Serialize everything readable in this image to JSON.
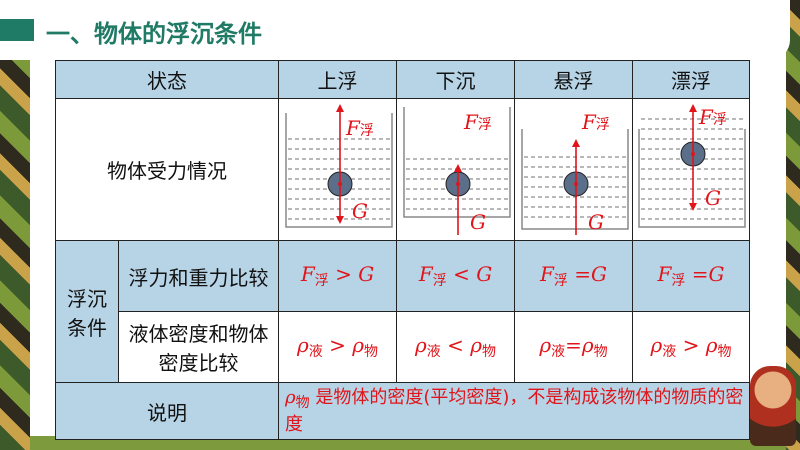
{
  "title": "一、物体的浮沉条件",
  "colors": {
    "accent": "#1f7a66",
    "header_bg": "#b7d4e6",
    "red": "#e0141a"
  },
  "table": {
    "headers": [
      "状态",
      "上浮",
      "下沉",
      "悬浮",
      "漂浮"
    ],
    "force_row_label": "物体受力情况",
    "force_labels": {
      "buoyancy": "F",
      "buoyancy_sub": "浮",
      "gravity": "G"
    },
    "condition_group": "浮沉条件",
    "compare_force_label": "浮力和重力比较",
    "compare_force": [
      {
        "f": "F",
        "sub": "浮",
        "op": " > G"
      },
      {
        "f": "F",
        "sub": "浮",
        "op": " < G"
      },
      {
        "f": "F",
        "sub": "浮",
        "op": " =G"
      },
      {
        "f": "F",
        "sub": "浮",
        "op": " =G"
      }
    ],
    "compare_density_label": "液体密度和物体密度比较",
    "compare_density": [
      {
        "a": "ρ",
        "a_sub": "液",
        "op": " > ",
        "b": "ρ",
        "b_sub": "物"
      },
      {
        "a": "ρ",
        "a_sub": "液",
        "op": " < ",
        "b": "ρ",
        "b_sub": "物"
      },
      {
        "a": "ρ",
        "a_sub": "液",
        "op": "=",
        "b": "ρ",
        "b_sub": "物"
      },
      {
        "a": "ρ",
        "a_sub": "液",
        "op": " > ",
        "b": "ρ",
        "b_sub": "物"
      }
    ],
    "note_label": "说明",
    "note": {
      "rho": "ρ",
      "rho_sub": "物",
      "text": "是物体的密度(平均密度)，不是构成该物体的物质的密度"
    }
  }
}
